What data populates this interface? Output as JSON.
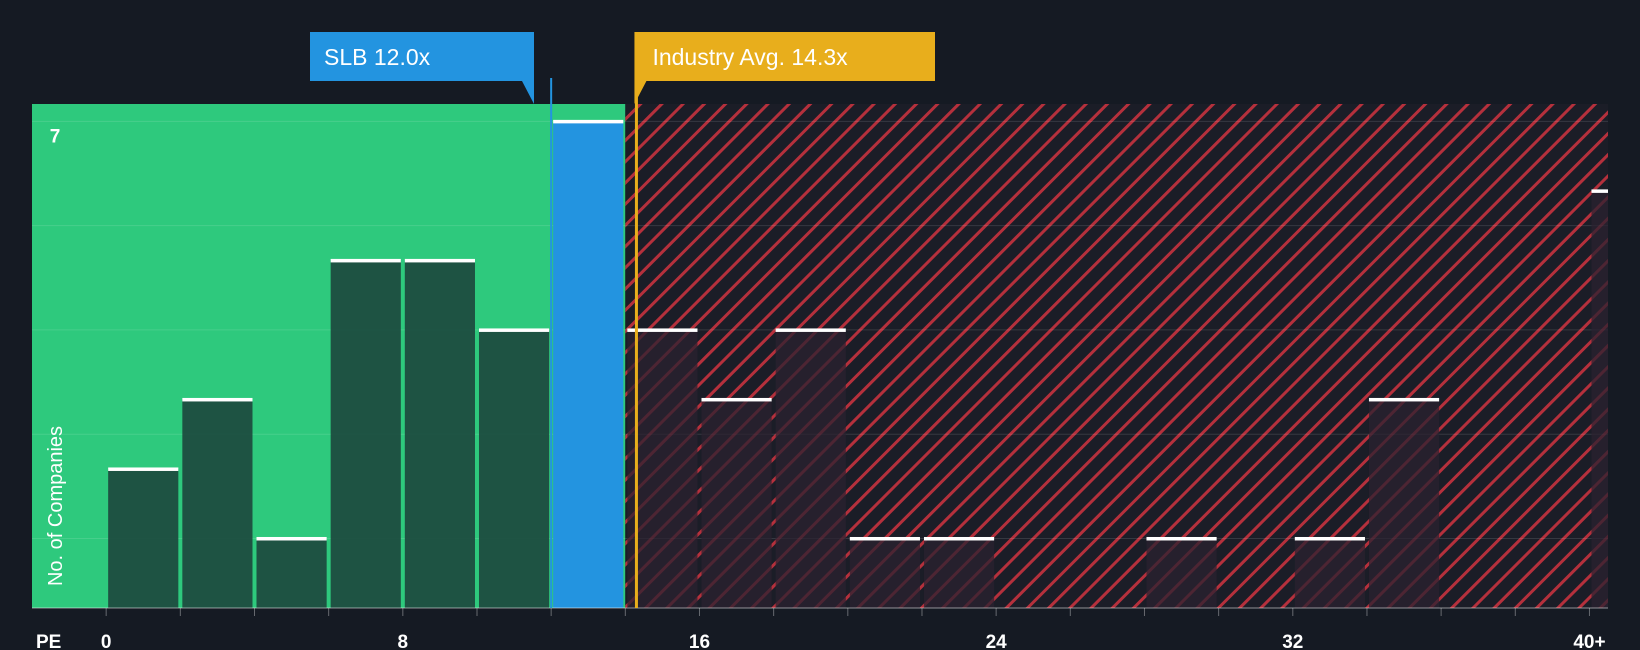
{
  "chart_data": {
    "type": "bar",
    "title": "",
    "xlabel": "PE",
    "ylabel": "No. of Companies",
    "xlim": [
      -2,
      40.5
    ],
    "ylim": [
      0,
      7.25
    ],
    "bin_width": 2,
    "x_ticks": [
      {
        "value": 0,
        "label": "0"
      },
      {
        "value": 8,
        "label": "8"
      },
      {
        "value": 16,
        "label": "16"
      },
      {
        "value": 24,
        "label": "24"
      },
      {
        "value": 32,
        "label": "32"
      },
      {
        "value": 40,
        "label": "40+"
      }
    ],
    "y_ticks": [
      {
        "value": 7,
        "label": "7"
      }
    ],
    "bins": [
      {
        "start": 0,
        "count": 2
      },
      {
        "start": 2,
        "count": 3
      },
      {
        "start": 4,
        "count": 1
      },
      {
        "start": 6,
        "count": 5
      },
      {
        "start": 8,
        "count": 5
      },
      {
        "start": 10,
        "count": 4
      },
      {
        "start": 12,
        "count": 7,
        "highlight": true
      },
      {
        "start": 14,
        "count": 4
      },
      {
        "start": 16,
        "count": 3
      },
      {
        "start": 18,
        "count": 4
      },
      {
        "start": 20,
        "count": 1
      },
      {
        "start": 22,
        "count": 1
      },
      {
        "start": 24,
        "count": 0
      },
      {
        "start": 26,
        "count": 0
      },
      {
        "start": 28,
        "count": 1
      },
      {
        "start": 30,
        "count": 0
      },
      {
        "start": 32,
        "count": 1
      },
      {
        "start": 34,
        "count": 3
      },
      {
        "start": 36,
        "count": 0
      },
      {
        "start": 38,
        "count": 0
      },
      {
        "start": 40,
        "count": 6,
        "overflow": true
      }
    ],
    "company": {
      "name": "SLB",
      "value": 12.0,
      "label": "SLB 12.0x"
    },
    "industry_avg": {
      "value": 14.3,
      "label": "Industry Avg. 14.3x"
    },
    "colors": {
      "background": "#151a23",
      "good_zone": "#2ec97d",
      "bad_zone": "#b5303c",
      "bar_good": "#1e4d40",
      "bar_bad": "#2b2230",
      "highlight_bar": "#2394e0",
      "company_callout": "#2394e0",
      "industry_callout": "#e8ae1c",
      "bar_cap": "#ffffff"
    }
  }
}
